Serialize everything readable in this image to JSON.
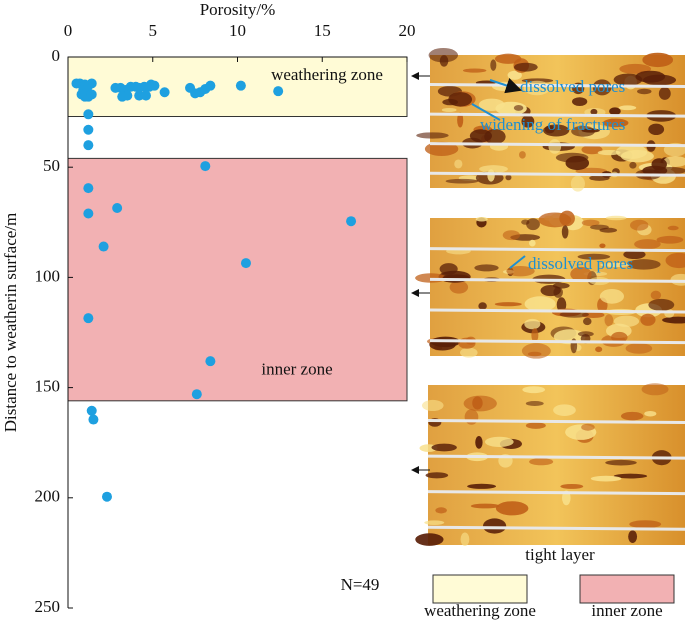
{
  "chart_data": {
    "type": "scatter",
    "x_label": "Porosity/%",
    "y_label": "Distance to weatherin surface/m",
    "xlim": [
      0,
      20
    ],
    "xticks": [
      0,
      5,
      10,
      15,
      20
    ],
    "ylim": [
      0,
      250
    ],
    "yticks": [
      0,
      50,
      100,
      150,
      200,
      250
    ],
    "y_inverted": true,
    "x_axis_position": "top",
    "series": [
      {
        "color": "#1ea0e0",
        "x": [
          0.5,
          0.7,
          1.0,
          1.4,
          0.9,
          1.1,
          1.0,
          1.2,
          1.4,
          1.2,
          0.8,
          2.8,
          3.1,
          3.4,
          3.7,
          4.0,
          4.2,
          4.5,
          4.9,
          4.8,
          5.1,
          3.5,
          3.2,
          4.2,
          4.6,
          5.7,
          7.2,
          7.5,
          7.8,
          8.1,
          8.4,
          10.2,
          12.4,
          1.2,
          1.2,
          1.2,
          8.1,
          1.2,
          1.2,
          2.9,
          16.7,
          2.1,
          10.5,
          1.2,
          8.4,
          7.6,
          1.4,
          1.5,
          2.3
        ],
        "y": [
          12,
          12,
          12.5,
          12,
          15,
          16,
          18,
          18,
          17,
          13,
          17,
          14,
          14,
          15,
          13.5,
          13.5,
          14,
          13.5,
          12.5,
          13.5,
          13,
          17.5,
          18,
          17.5,
          17.5,
          16,
          14,
          16.5,
          16,
          14.5,
          13,
          13,
          15.5,
          26,
          33,
          40,
          49.5,
          59.5,
          71,
          68.5,
          74.5,
          86,
          93.5,
          118.5,
          138,
          153,
          160.5,
          164.5,
          199.5
        ]
      }
    ],
    "zones": [
      {
        "label": "weathering zone",
        "range": [
          0,
          27
        ],
        "color": "#fffbd6"
      },
      {
        "label": "inner zone",
        "range": [
          46,
          156
        ],
        "color": "#f2b1b3"
      }
    ],
    "note": "N=49",
    "image_labels": [
      "dissolved pores",
      "widening of fractures",
      "dissolved pores",
      "tight layer"
    ]
  }
}
